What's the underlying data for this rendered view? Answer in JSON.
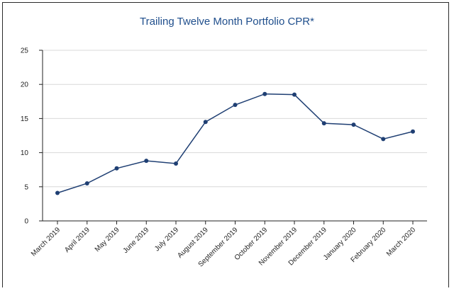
{
  "chart_data": {
    "type": "line",
    "title": "Trailing Twelve Month Portfolio CPR*",
    "xlabel": "",
    "ylabel": "",
    "ylim": [
      0,
      25
    ],
    "yticks": [
      0,
      5,
      10,
      15,
      20,
      25
    ],
    "grid": true,
    "legend": "none",
    "categories": [
      "March 2019",
      "April 2019",
      "May 2019",
      "June 2019",
      "July 2019",
      "August 2019",
      "September 2019",
      "October 2019",
      "November 2019",
      "December 2019",
      "January 2020",
      "February 2020",
      "March 2020"
    ],
    "series": [
      {
        "values": [
          4.1,
          5.5,
          7.7,
          8.8,
          8.4,
          14.5,
          17.0,
          18.6,
          18.5,
          14.3,
          14.1,
          12.0,
          13.1
        ],
        "color": "#1f3f73"
      }
    ]
  }
}
